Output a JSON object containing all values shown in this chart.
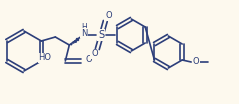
{
  "bg": "#fdf9ee",
  "bc": "#2c3e7a",
  "lw": 1.2,
  "dbl_sep": 0.03,
  "figsize": [
    2.39,
    1.04
  ],
  "dpi": 100,
  "fs": 6.0,
  "xlim": [
    0,
    239
  ],
  "ylim": [
    0,
    104
  ]
}
